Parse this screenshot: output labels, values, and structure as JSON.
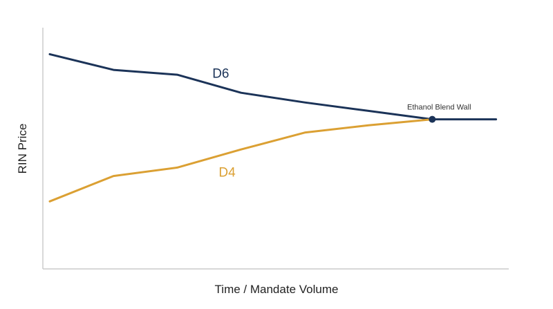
{
  "chart_data": {
    "type": "line",
    "title": "",
    "xlabel": "Time / Mandate Volume",
    "ylabel": "RIN Price",
    "x": [
      0,
      1,
      2,
      3,
      4,
      5,
      6,
      7
    ],
    "xlim": [
      0,
      7.2
    ],
    "ylim": [
      0,
      10
    ],
    "grid": false,
    "series": [
      {
        "name": "D6",
        "color": "#1b3358",
        "values": [
          8.9,
          8.25,
          8.05,
          7.3,
          6.9,
          6.55,
          6.2,
          6.2
        ]
      },
      {
        "name": "D4",
        "color": "#dba033",
        "values": [
          2.8,
          3.85,
          4.2,
          4.95,
          5.65,
          5.95,
          6.2,
          null
        ]
      }
    ],
    "annotations": [
      {
        "text": "Ethanol Blend Wall",
        "x": 6,
        "y": 6.2,
        "marker_color": "#1b3358"
      }
    ]
  }
}
